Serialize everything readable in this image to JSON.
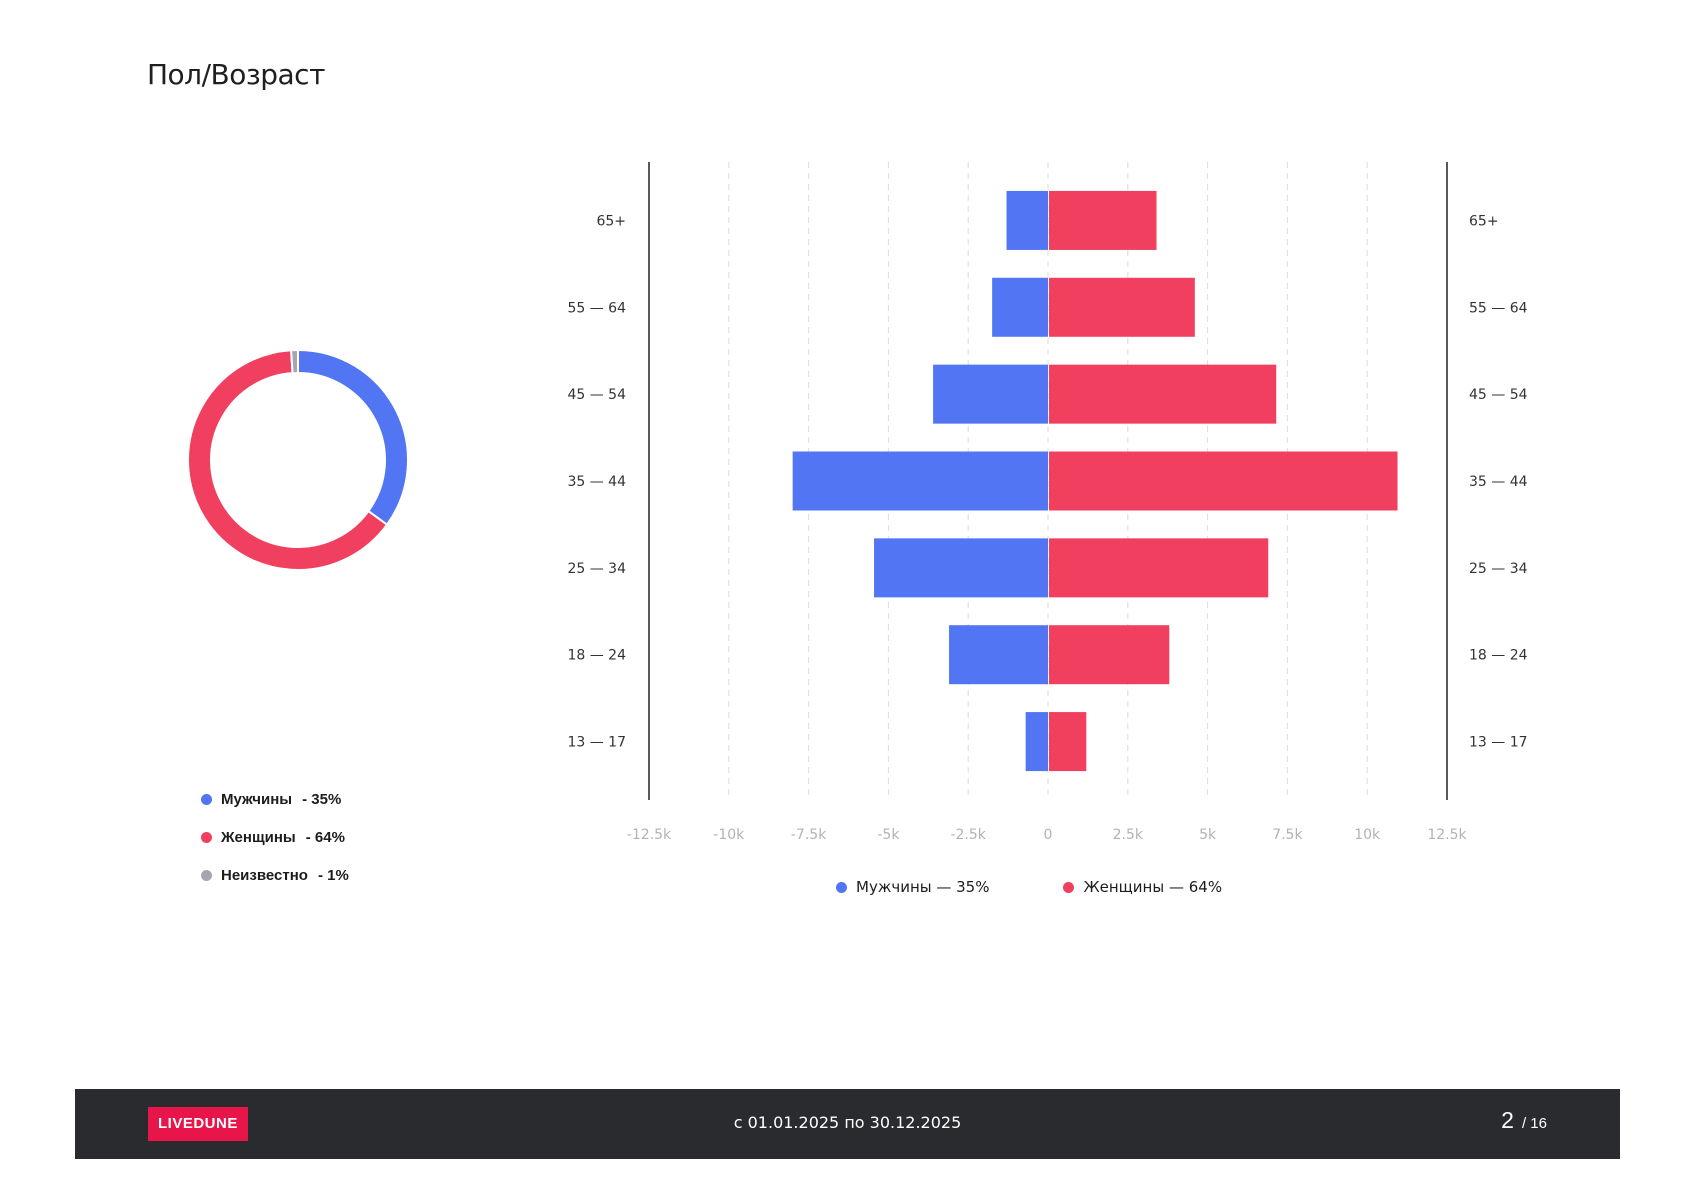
{
  "title": "Пол/Возраст",
  "colors": {
    "male": "#5175f3",
    "female": "#f13f60",
    "unknown": "#a7a6b0"
  },
  "donut_legend": [
    {
      "label": "Мужчины",
      "pct": "- 35%"
    },
    {
      "label": "Женщины",
      "pct": "- 64%"
    },
    {
      "label": "Неизвестно",
      "pct": "- 1%"
    }
  ],
  "pyramid_legend": {
    "male": "Мужчины — 35%",
    "female": "Женщины — 64%"
  },
  "chart_data": [
    {
      "type": "pie",
      "variant": "donut",
      "labels": [
        "Мужчины",
        "Женщины",
        "Неизвестно"
      ],
      "values": [
        35,
        64,
        1
      ]
    },
    {
      "type": "bar",
      "orientation": "horizontal",
      "variant": "population-pyramid",
      "categories": [
        "65+",
        "55 — 64",
        "45 — 54",
        "35 — 44",
        "25 — 34",
        "18 — 24",
        "13 — 17"
      ],
      "series": [
        {
          "name": "Мужчины",
          "values": [
            -1300,
            -1750,
            -3600,
            -8000,
            -5450,
            -3100,
            -700
          ]
        },
        {
          "name": "Женщины",
          "values": [
            3400,
            4600,
            7150,
            10950,
            6900,
            3800,
            1200
          ]
        }
      ],
      "xlim": [
        -12500,
        12500
      ],
      "xticks": [
        "-12.5k",
        "-10k",
        "-7.5k",
        "-5k",
        "-2.5k",
        "0",
        "2.5k",
        "5k",
        "7.5k",
        "10k",
        "12.5k"
      ],
      "grid": true,
      "legend": "bottom"
    }
  ],
  "footer": {
    "logo": "LIVEDUNE",
    "period": "с 01.01.2025 по 30.12.2025",
    "page": "2",
    "total": "/ 16"
  }
}
